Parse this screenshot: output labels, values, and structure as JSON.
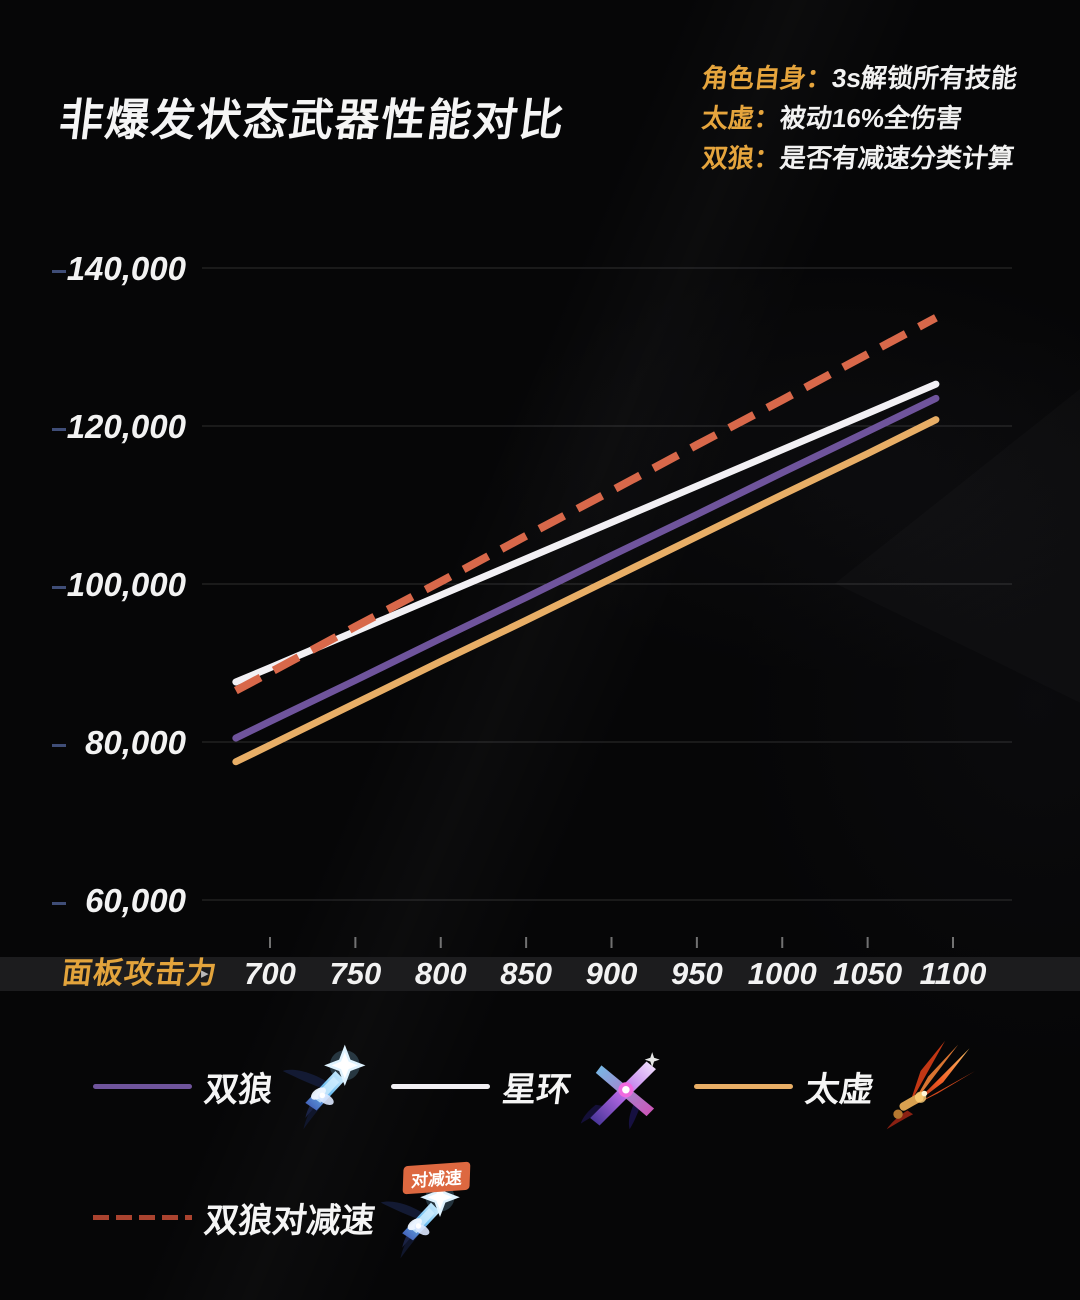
{
  "title": "非爆发状态武器性能对比",
  "notes": [
    {
      "label": "角色自身：",
      "text": "3s解锁所有技能"
    },
    {
      "label": "太虚：",
      "text": "被动16%全伤害"
    },
    {
      "label": "双狼：",
      "text": "是否有减速分类计算"
    }
  ],
  "icons": {
    "axis_arrow": "▸"
  },
  "legend": {
    "badge": "对减速"
  },
  "colors": {
    "background": "#060607",
    "title_text": "#f5f5f5",
    "note_label": "#e6a53d",
    "note_text": "#f2f2f2",
    "axis_strip_bg": "#1c1c1e",
    "axis_label": "#e3a43c",
    "tick_text": "#f2f2f2",
    "grid_line": "rgba(255,255,255,0.16)",
    "y_dash": "#3f4d77",
    "x_tick_mark": "rgba(220,220,220,0.5)",
    "badge_bg": "#dd6840",
    "badge_text": "#ffffff"
  },
  "chart_data": {
    "type": "line",
    "title": "非爆发状态武器性能对比",
    "xlabel": "面板攻击力",
    "ylabel": "",
    "grid": true,
    "legend_position": "bottom",
    "x": [
      680,
      700,
      750,
      800,
      850,
      900,
      950,
      1000,
      1050,
      1090
    ],
    "x_ticks": [
      700,
      750,
      800,
      850,
      900,
      950,
      1000,
      1050,
      1100
    ],
    "y_ticks": [
      60000,
      80000,
      100000,
      120000,
      140000
    ],
    "xlim": [
      660,
      1175
    ],
    "ylim": [
      52000,
      146000
    ],
    "series": [
      {
        "name": "双狼",
        "color": "#6f549c",
        "style": "solid",
        "values": [
          80500,
          82600,
          87800,
          93100,
          98300,
          103600,
          108800,
          114100,
          119300,
          123500
        ]
      },
      {
        "name": "星环",
        "color": "#f2f0f4",
        "style": "solid",
        "values": [
          87600,
          89400,
          94000,
          98600,
          103200,
          107800,
          112400,
          117000,
          121600,
          125300
        ]
      },
      {
        "name": "太虚",
        "color": "#e8ae66",
        "style": "solid",
        "values": [
          77500,
          79600,
          84900,
          90200,
          95400,
          100700,
          106000,
          111300,
          116500,
          120800
        ]
      },
      {
        "name": "双狼对减速",
        "color": "#d8684a",
        "legend_color": "#aa432f",
        "style": "dashed",
        "values": [
          86500,
          88800,
          94600,
          100300,
          106100,
          111800,
          117600,
          123300,
          129100,
          133700
        ]
      }
    ]
  }
}
